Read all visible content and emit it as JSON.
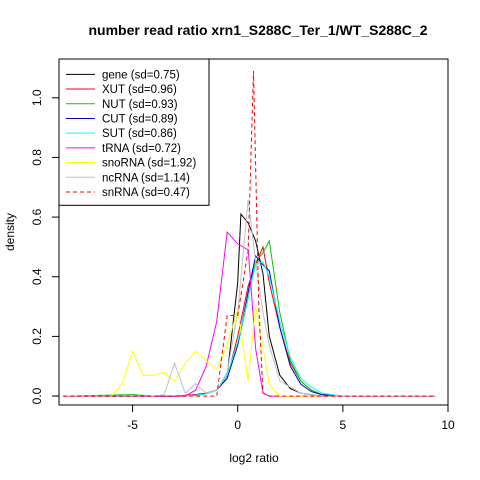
{
  "chart_data": {
    "type": "line",
    "title": "number read ratio xrn1_S288C_Ter_1/WT_S288C_2",
    "xlabel": "log2 ratio",
    "ylabel": "density",
    "xlim": [
      -8.5,
      10
    ],
    "ylim": [
      -0.03,
      1.13
    ],
    "xticks": [
      -5,
      0,
      5,
      10
    ],
    "yticks": [
      0.0,
      0.2,
      0.4,
      0.6,
      0.8,
      1.0
    ],
    "xtick_labels": [
      "-5",
      "0",
      "5",
      "10"
    ],
    "ytick_labels": [
      "0.0",
      "0.2",
      "0.4",
      "0.6",
      "0.8",
      "1.0"
    ],
    "grid": false,
    "legend_position": "top-left",
    "series": [
      {
        "name": "gene (sd=0.75)",
        "color": "#000000",
        "dash": "solid",
        "x": [
          -8.3,
          -6,
          -5,
          -4,
          -3,
          -2,
          -1.5,
          -1,
          -0.5,
          0,
          0.15,
          0.5,
          0.85,
          1.2,
          1.5,
          2,
          2.5,
          3,
          3.5,
          4,
          5,
          9.4
        ],
        "y": [
          0,
          0,
          0,
          0,
          0,
          0.005,
          0.01,
          0.02,
          0.07,
          0.38,
          0.61,
          0.58,
          0.52,
          0.41,
          0.2,
          0.07,
          0.025,
          0.01,
          0.005,
          0,
          0,
          0
        ]
      },
      {
        "name": "XUT (sd=0.96)",
        "color": "#ff0000",
        "dash": "solid",
        "x": [
          -8.3,
          -6,
          -4,
          -3,
          -2,
          -1.5,
          -1,
          -0.5,
          0,
          0.5,
          0.85,
          1.2,
          1.5,
          2,
          2.5,
          3,
          3.5,
          4,
          5,
          9.4
        ],
        "y": [
          0,
          0,
          0,
          0,
          0.005,
          0.01,
          0.02,
          0.06,
          0.2,
          0.37,
          0.44,
          0.5,
          0.38,
          0.23,
          0.11,
          0.05,
          0.02,
          0.005,
          0,
          0
        ]
      },
      {
        "name": "NUT (sd=0.93)",
        "color": "#00cc00",
        "dash": "solid",
        "x": [
          -8.3,
          -5,
          -4,
          -3,
          -2,
          -1.5,
          -1,
          -0.5,
          0,
          0.5,
          0.85,
          1.2,
          1.5,
          2,
          2.5,
          3,
          3.5,
          4,
          5,
          9.4
        ],
        "y": [
          0,
          0.005,
          0,
          0,
          0.003,
          0.008,
          0.02,
          0.07,
          0.17,
          0.33,
          0.45,
          0.48,
          0.52,
          0.28,
          0.12,
          0.05,
          0.02,
          0.005,
          0,
          0
        ]
      },
      {
        "name": "CUT (sd=0.89)",
        "color": "#0000cc",
        "dash": "solid",
        "x": [
          -8.3,
          -5,
          -4,
          -3,
          -2,
          -1.5,
          -1,
          -0.5,
          0,
          0.5,
          0.85,
          1.2,
          1.5,
          2,
          2.5,
          3,
          3.5,
          4,
          5,
          9.4
        ],
        "y": [
          0,
          0,
          0,
          0,
          0.003,
          0.008,
          0.02,
          0.06,
          0.17,
          0.35,
          0.47,
          0.44,
          0.42,
          0.23,
          0.1,
          0.04,
          0.015,
          0.005,
          0,
          0
        ]
      },
      {
        "name": "SUT (sd=0.86)",
        "color": "#00ffff",
        "dash": "solid",
        "x": [
          -8.3,
          -5,
          -4,
          -3,
          -2,
          -1.5,
          -1,
          -0.5,
          0,
          0.5,
          0.85,
          1.2,
          1.5,
          2,
          2.5,
          3,
          3.5,
          4,
          5,
          9.4
        ],
        "y": [
          0,
          0,
          0,
          0,
          0.003,
          0.008,
          0.02,
          0.07,
          0.18,
          0.33,
          0.44,
          0.45,
          0.4,
          0.25,
          0.13,
          0.06,
          0.03,
          0.01,
          0,
          0
        ]
      },
      {
        "name": "tRNA (sd=0.72)",
        "color": "#ff00ff",
        "dash": "solid",
        "x": [
          -8.3,
          -5,
          -4,
          -3,
          -2.5,
          -2,
          -1.5,
          -1,
          -0.5,
          0,
          0.5,
          0.85,
          1.2,
          1.5,
          2,
          5,
          9.4
        ],
        "y": [
          0,
          0,
          0,
          0,
          0,
          0.02,
          0.1,
          0.25,
          0.55,
          0.51,
          0.49,
          0.16,
          0.01,
          0,
          0,
          0,
          0
        ]
      },
      {
        "name": "snoRNA (sd=1.92)",
        "color": "#ffff00",
        "dash": "solid",
        "x": [
          -8.3,
          -6,
          -5.5,
          -5,
          -4.5,
          -4,
          -3.5,
          -3,
          -2.5,
          -2,
          -1.5,
          -1,
          -0.5,
          0,
          0.5,
          0.85,
          1.2,
          1.5,
          2,
          5,
          9.4
        ],
        "y": [
          0,
          0,
          0.04,
          0.15,
          0.07,
          0.07,
          0.08,
          0.05,
          0.11,
          0.15,
          0.12,
          0.09,
          0.17,
          0.29,
          0.05,
          0.3,
          0.16,
          0.04,
          0,
          0,
          0
        ]
      },
      {
        "name": "ncRNA (sd=1.14)",
        "color": "#c0c0c0",
        "dash": "solid",
        "x": [
          -8.3,
          -5,
          -4,
          -3.5,
          -3,
          -2.5,
          -2,
          -1.5,
          -1,
          -0.5,
          0,
          0.5,
          0.85,
          1.2,
          1.5,
          2,
          2.5,
          3,
          4,
          5,
          9.4
        ],
        "y": [
          0,
          0,
          0,
          0.005,
          0.11,
          0.01,
          0.04,
          0.01,
          0.02,
          0.08,
          0.28,
          0.66,
          0.45,
          0.28,
          0.17,
          0.05,
          0.03,
          0.01,
          0,
          0,
          0
        ]
      },
      {
        "name": "snRNA (sd=0.47)",
        "color": "#ff0000",
        "dash": "dashed",
        "x": [
          -8.3,
          -5,
          -2,
          -1,
          -0.5,
          0,
          0.5,
          0.75,
          1,
          1.2,
          1.5,
          2,
          5,
          9.4
        ],
        "y": [
          0,
          0,
          0,
          0,
          0.27,
          0.27,
          0.49,
          1.09,
          0.3,
          0.01,
          0,
          0,
          0,
          0
        ]
      }
    ]
  }
}
